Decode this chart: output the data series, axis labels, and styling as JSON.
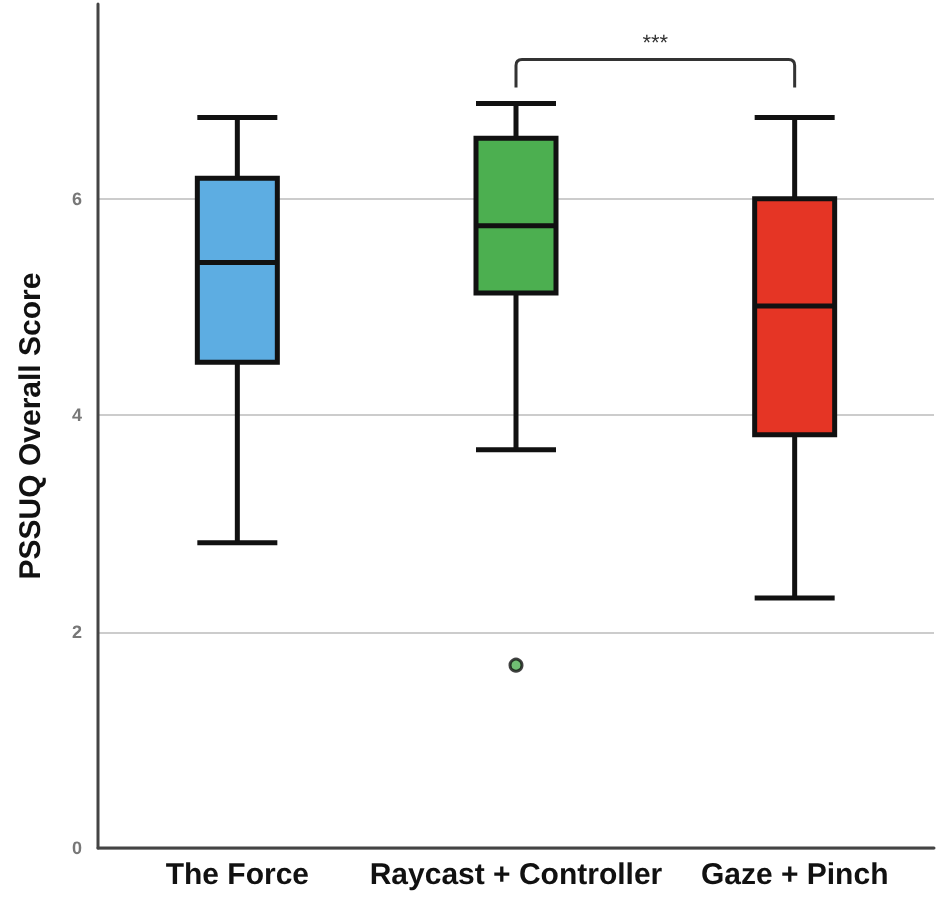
{
  "chart_data": {
    "type": "box",
    "ylabel": "PSSUQ Overall Score",
    "categories": [
      "The Force",
      "Raycast + Controller",
      "Gaze + Pinch"
    ],
    "boxes": [
      {
        "low": 2.82,
        "q1": 4.49,
        "median": 5.41,
        "q3": 6.19,
        "high": 6.75
      },
      {
        "low": 3.68,
        "q1": 5.13,
        "median": 5.75,
        "q3": 6.56,
        "high": 6.88,
        "outliers": [
          1.69
        ]
      },
      {
        "low": 2.31,
        "q1": 3.82,
        "median": 5.01,
        "q3": 6.0,
        "high": 6.75
      }
    ],
    "colors": [
      "#5dade2",
      "#4caf50",
      "#e53525"
    ],
    "ylim": [
      0,
      7.8
    ],
    "yticks": [
      0,
      2,
      4,
      6
    ],
    "grid": "y",
    "annotations": [
      "***"
    ]
  }
}
